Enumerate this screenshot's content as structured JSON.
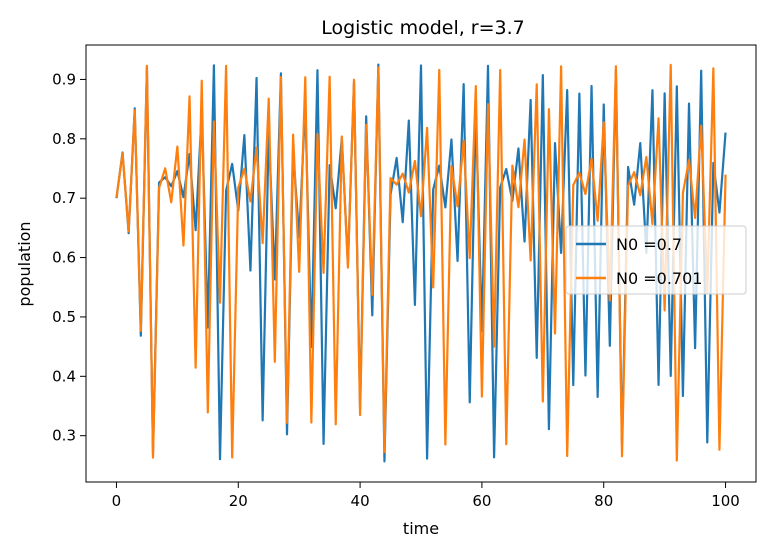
{
  "chart_data": {
    "type": "line",
    "title": "Logistic model, r=3.7",
    "xlabel": "time",
    "ylabel": "population",
    "xlim": [
      -5,
      105
    ],
    "ylim": [
      0.222,
      0.958
    ],
    "xticks": [
      0,
      20,
      40,
      60,
      80,
      100
    ],
    "yticks": [
      0.3,
      0.4,
      0.5,
      0.6,
      0.7,
      0.8,
      0.9
    ],
    "grid": false,
    "legend_position": "center-right",
    "series": [
      {
        "name": "N0 =0.7",
        "color": "#1f77b4",
        "r": 3.7,
        "x0": 0.7,
        "steps": 100
      },
      {
        "name": "N0 =0.701",
        "color": "#ff7f0e",
        "r": 3.7,
        "x0": 0.701,
        "steps": 100
      }
    ]
  }
}
